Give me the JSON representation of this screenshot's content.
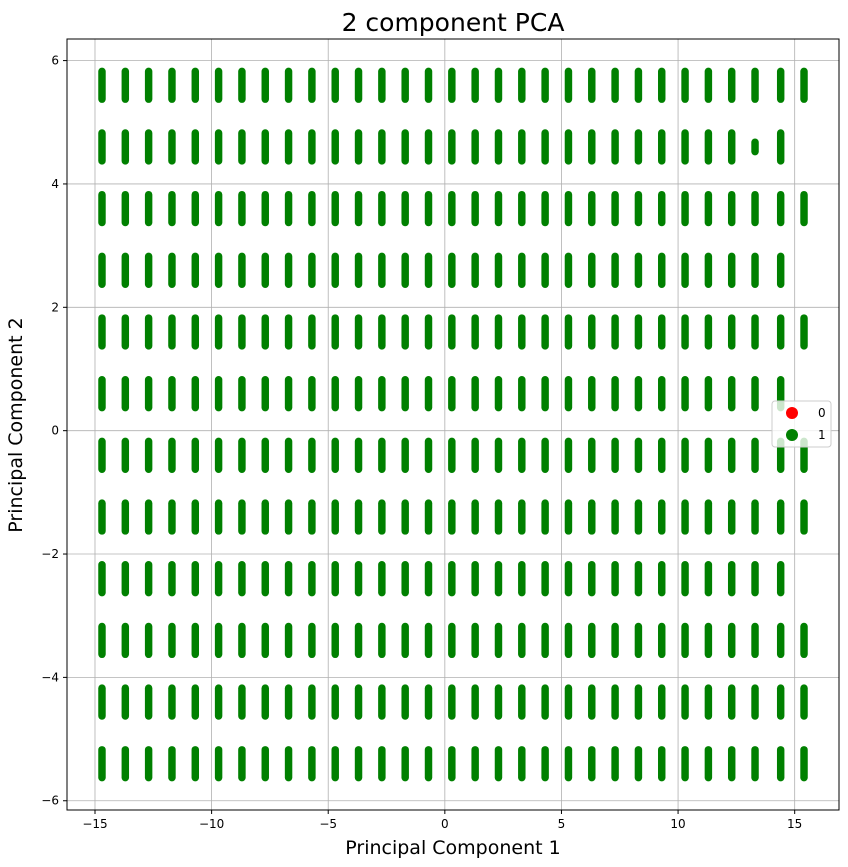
{
  "chart_data": {
    "type": "scatter",
    "title": "2 component PCA",
    "xlabel": "Principal Component 1",
    "ylabel": "Principal Component 2",
    "xlim": [
      -16.2,
      16.9
    ],
    "ylim": [
      -6.15,
      6.35
    ],
    "xticks": [
      -15,
      -10,
      -5,
      0,
      5,
      10,
      15
    ],
    "yticks": [
      -6,
      -4,
      -2,
      0,
      2,
      4,
      6
    ],
    "xtick_labels": [
      "−15",
      "−10",
      "−5",
      "0",
      "5",
      "10",
      "15"
    ],
    "ytick_labels": [
      "−6",
      "−4",
      "−2",
      "0",
      "2",
      "4",
      "6"
    ],
    "grid": true,
    "legend": {
      "placement": "center-right"
    },
    "series": [
      {
        "name": "0",
        "color": "#ff0000",
        "marker": "circle",
        "points": []
      },
      {
        "name": "1",
        "color": "#008000",
        "marker": "circle",
        "pattern": "dense point clusters, each spanning about 0.5 units vertically",
        "cluster_x_centers": [
          -14.7,
          -13.7,
          -12.7,
          -11.7,
          -10.7,
          -9.7,
          -8.7,
          -7.7,
          -6.7,
          -5.7,
          -4.7,
          -3.7,
          -2.7,
          -1.7,
          -0.7,
          0.3,
          1.3,
          2.3,
          3.3,
          4.3,
          5.3,
          6.3,
          7.3,
          8.3,
          9.3,
          10.3,
          11.3,
          12.3,
          13.3,
          14.4,
          15.4
        ],
        "cluster_y_centers": [
          5.6,
          4.6,
          3.6,
          2.6,
          1.6,
          0.6,
          -0.4,
          -1.4,
          -2.4,
          -3.4,
          -4.4,
          -5.4
        ],
        "missing_clusters": [
          {
            "x": 15.4,
            "y": 4.6
          },
          {
            "x": 15.4,
            "y": 2.6
          },
          {
            "x": 15.4,
            "y": 0.6
          },
          {
            "x": 15.4,
            "y": -2.4
          }
        ],
        "partial_clusters": [
          {
            "x": 13.3,
            "y": 4.6,
            "y_range": [
              4.5,
              4.7
            ]
          }
        ]
      }
    ]
  }
}
